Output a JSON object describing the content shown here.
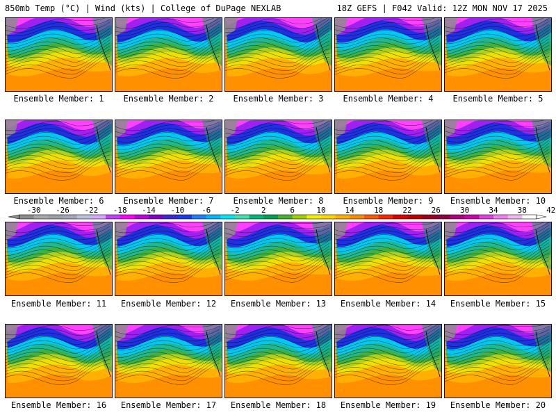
{
  "header": {
    "left": "850mb Temp (°C) | Wind (kts) | College of DuPage NEXLAB",
    "right": "18Z GEFS | F042 Valid: 12Z MON NOV 17 2025"
  },
  "panel_label_prefix": "Ensemble Member: ",
  "members": [
    1,
    2,
    3,
    4,
    5,
    6,
    7,
    8,
    9,
    10,
    11,
    12,
    13,
    14,
    15,
    16,
    17,
    18,
    19,
    20
  ],
  "colorbar": {
    "tick_labels": [
      "-30",
      "-26",
      "-22",
      "-18",
      "-14",
      "-10",
      "-6",
      "-2",
      "2",
      "6",
      "10",
      "14",
      "18",
      "22",
      "26",
      "30",
      "34",
      "38",
      "42"
    ],
    "colors": [
      "#8c8c8c",
      "#a8a8a8",
      "#9aa0a6",
      "#a6a6bd",
      "#bfbfe0",
      "#d8a8ff",
      "#c040ff",
      "#ff00ff",
      "#c000e0",
      "#8000c8",
      "#3c28d8",
      "#1c3cf0",
      "#2080ff",
      "#00b8ff",
      "#00e8f0",
      "#40e0b0",
      "#00b87a",
      "#00a050",
      "#48b030",
      "#a0d000",
      "#f0f000",
      "#ffd800",
      "#ffb000",
      "#ff8c00",
      "#ff5a00",
      "#ff2400",
      "#e00000",
      "#c00000",
      "#a00020",
      "#900040",
      "#b00080",
      "#d000b0",
      "#e040e0",
      "#f080f0",
      "#f0b8f0",
      "#ffffff"
    ]
  },
  "map_colors": {
    "cold_magenta": "#ff40ff",
    "violet": "#a020f0",
    "blue": "#2030e0",
    "cyan": "#00c8f0",
    "teal": "#20b890",
    "green": "#40b040",
    "lime": "#b0d020",
    "yellow": "#f0e000",
    "orange": "#ffb000",
    "dark_orange": "#ff9000",
    "land_green": "#20a060",
    "gray": "#8c8c8c"
  }
}
